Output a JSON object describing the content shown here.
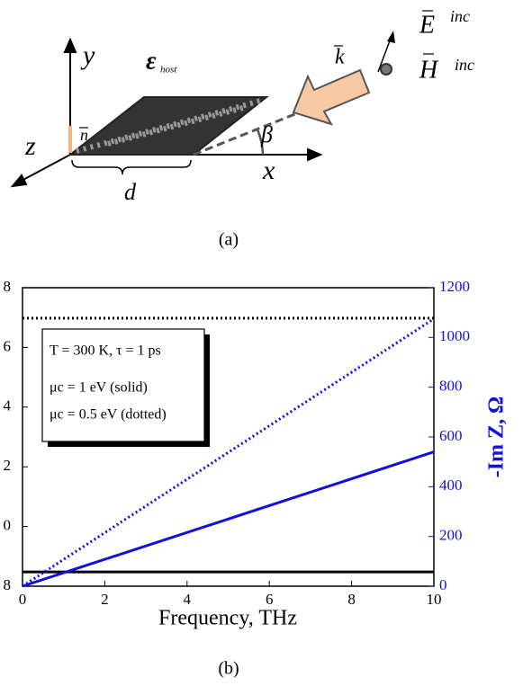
{
  "diagram": {
    "y_label": "y",
    "host_label": "ε",
    "host_sub": "host",
    "z_label": "z",
    "x_label": "x",
    "d_label": "d",
    "beta_label": "β",
    "k_label": "k",
    "n_label": "n",
    "E_label": "E",
    "H_label": "H",
    "E_sup": "inc",
    "H_sup": "inc",
    "caption": "(a)"
  },
  "chart_data": {
    "type": "line",
    "caption": "(b)",
    "xlabel": "Frequency, THz",
    "y2label": "-Im Z, Ω",
    "x": [
      0,
      10
    ],
    "xlim": [
      0,
      10
    ],
    "xticks": [
      0,
      2,
      4,
      6,
      8,
      10
    ],
    "ylim": [
      0,
      5
    ],
    "yticks": [
      {
        "value": 0,
        "label": "8"
      },
      {
        "value": 1,
        "label": "0"
      },
      {
        "value": 2,
        "label": "2"
      },
      {
        "value": 3,
        "label": "4"
      },
      {
        "value": 4,
        "label": "6"
      },
      {
        "value": 5,
        "label": "8"
      }
    ],
    "y2lim": [
      0,
      1200
    ],
    "y2ticks": [
      0,
      200,
      400,
      600,
      800,
      1000,
      1200
    ],
    "legend_lines": [
      "T = 300 K, τ = 1 ps",
      "μc = 1 eV (solid)",
      "μc = 0.5 eV (dotted)"
    ],
    "series": [
      {
        "color": "#000000",
        "dash": "solid",
        "values": [
          0.24,
          0.24
        ]
      },
      {
        "color": "#000000",
        "dash": "dotted",
        "values": [
          4.49,
          4.49
        ]
      },
      {
        "color": "#1010e0",
        "dash": "solid",
        "axis": "y2",
        "values": [
          0,
          540
        ]
      },
      {
        "color": "#1010e0",
        "dash": "dotted",
        "axis": "y2",
        "values": [
          0,
          1075
        ]
      }
    ]
  }
}
